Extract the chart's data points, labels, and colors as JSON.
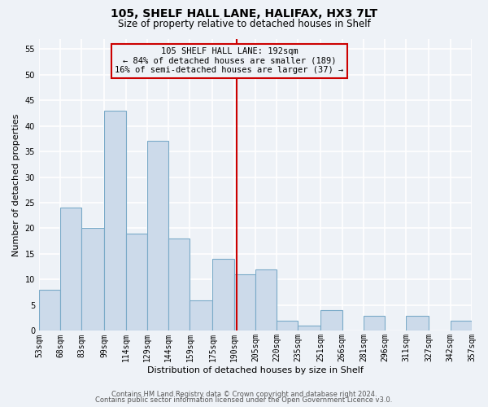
{
  "title": "105, SHELF HALL LANE, HALIFAX, HX3 7LT",
  "subtitle": "Size of property relative to detached houses in Shelf",
  "xlabel": "Distribution of detached houses by size in Shelf",
  "ylabel": "Number of detached properties",
  "bin_labels": [
    "53sqm",
    "68sqm",
    "83sqm",
    "99sqm",
    "114sqm",
    "129sqm",
    "144sqm",
    "159sqm",
    "175sqm",
    "190sqm",
    "205sqm",
    "220sqm",
    "235sqm",
    "251sqm",
    "266sqm",
    "281sqm",
    "296sqm",
    "311sqm",
    "327sqm",
    "342sqm",
    "357sqm"
  ],
  "bin_edges": [
    53,
    68,
    83,
    99,
    114,
    129,
    144,
    159,
    175,
    190,
    205,
    220,
    235,
    251,
    266,
    281,
    296,
    311,
    327,
    342,
    357
  ],
  "counts": [
    8,
    24,
    20,
    43,
    19,
    37,
    18,
    6,
    14,
    11,
    12,
    2,
    1,
    4,
    0,
    3,
    0,
    3,
    0,
    2
  ],
  "bar_facecolor": "#ccdaea",
  "bar_edgecolor": "#7aaac8",
  "vline_x": 192,
  "vline_color": "#cc0000",
  "ylim": [
    0,
    57
  ],
  "yticks": [
    0,
    5,
    10,
    15,
    20,
    25,
    30,
    35,
    40,
    45,
    50,
    55
  ],
  "annotation_title": "105 SHELF HALL LANE: 192sqm",
  "annotation_line1": "← 84% of detached houses are smaller (189)",
  "annotation_line2": "16% of semi-detached houses are larger (37) →",
  "annotation_box_edgecolor": "#cc0000",
  "footer_line1": "Contains HM Land Registry data © Crown copyright and database right 2024.",
  "footer_line2": "Contains public sector information licensed under the Open Government Licence v3.0.",
  "bg_color": "#eef2f7",
  "grid_color": "#ffffff",
  "title_fontsize": 10,
  "subtitle_fontsize": 8.5,
  "axis_label_fontsize": 8,
  "tick_fontsize": 7,
  "annot_fontsize": 7.5,
  "footer_fontsize": 6
}
